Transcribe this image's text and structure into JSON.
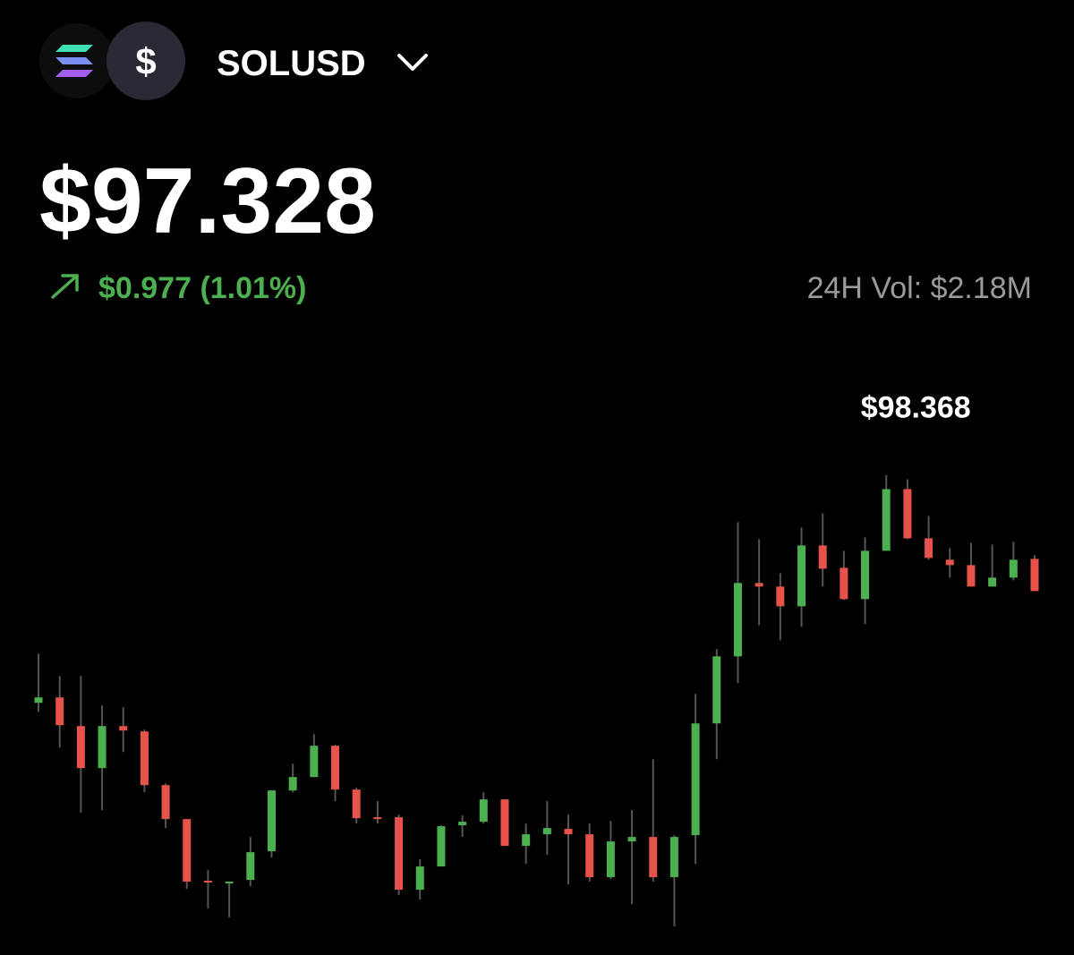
{
  "header": {
    "pair": "SOLUSD",
    "quote_symbol": "$",
    "price": "$97.328",
    "change": "$0.977 (1.01%)",
    "volume": "24H Vol: $2.18M"
  },
  "chart_data": {
    "type": "candlestick",
    "high_label": "$98.368",
    "up_color": "#4caf50",
    "down_color": "#e5534b",
    "ylim": [
      94.2,
      98.5
    ],
    "open": [
      96.328,
      96.376,
      96.12,
      95.744,
      96.12,
      96.072,
      95.592,
      95.288,
      94.736,
      94.712,
      94.744,
      95.0,
      95.544,
      95.664,
      95.944,
      95.552,
      95.304,
      95.304,
      94.656,
      94.864,
      95.232,
      95.264,
      95.464,
      95.048,
      95.152,
      95.2,
      95.152,
      94.768,
      95.088,
      95.128,
      94.768,
      95.144,
      96.144,
      96.744,
      97.4,
      97.368,
      97.192,
      97.736,
      97.536,
      97.256,
      97.688,
      98.24,
      97.8,
      97.608,
      97.56,
      97.368,
      97.448,
      97.616
    ],
    "high": [
      96.768,
      96.568,
      96.568,
      96.304,
      96.288,
      96.088,
      95.608,
      95.288,
      94.832,
      94.728,
      95.128,
      95.544,
      95.784,
      96.048,
      95.952,
      95.568,
      95.448,
      95.328,
      94.928,
      95.232,
      95.32,
      95.528,
      95.464,
      95.248,
      95.448,
      95.328,
      95.248,
      95.272,
      95.368,
      95.824,
      95.144,
      96.408,
      96.808,
      97.944,
      97.792,
      97.488,
      97.896,
      98.024,
      97.688,
      97.808,
      98.368,
      98.328,
      98.0,
      97.712,
      97.76,
      97.744,
      97.768,
      97.648
    ],
    "low": [
      96.248,
      95.928,
      95.344,
      95.368,
      95.888,
      95.528,
      95.208,
      94.664,
      94.488,
      94.408,
      94.688,
      94.944,
      95.528,
      95.664,
      95.448,
      95.248,
      95.248,
      94.608,
      94.568,
      94.864,
      95.128,
      95.248,
      95.048,
      94.888,
      94.968,
      94.704,
      94.728,
      94.752,
      94.528,
      94.728,
      94.328,
      94.888,
      95.824,
      96.504,
      97.024,
      96.888,
      97.008,
      97.368,
      97.248,
      97.032,
      97.688,
      97.792,
      97.608,
      97.448,
      97.368,
      97.368,
      97.424,
      97.328
    ],
    "close": [
      96.376,
      96.128,
      95.744,
      96.12,
      96.08,
      95.592,
      95.288,
      94.728,
      94.72,
      94.728,
      94.992,
      95.544,
      95.664,
      95.944,
      95.552,
      95.296,
      95.296,
      94.656,
      94.864,
      95.224,
      95.264,
      95.464,
      95.048,
      95.152,
      95.208,
      95.152,
      94.768,
      95.088,
      95.128,
      94.768,
      95.128,
      96.144,
      96.744,
      97.4,
      97.368,
      97.192,
      97.736,
      97.528,
      97.256,
      97.688,
      98.24,
      97.8,
      97.624,
      97.56,
      97.368,
      97.448,
      97.608,
      97.328
    ]
  }
}
